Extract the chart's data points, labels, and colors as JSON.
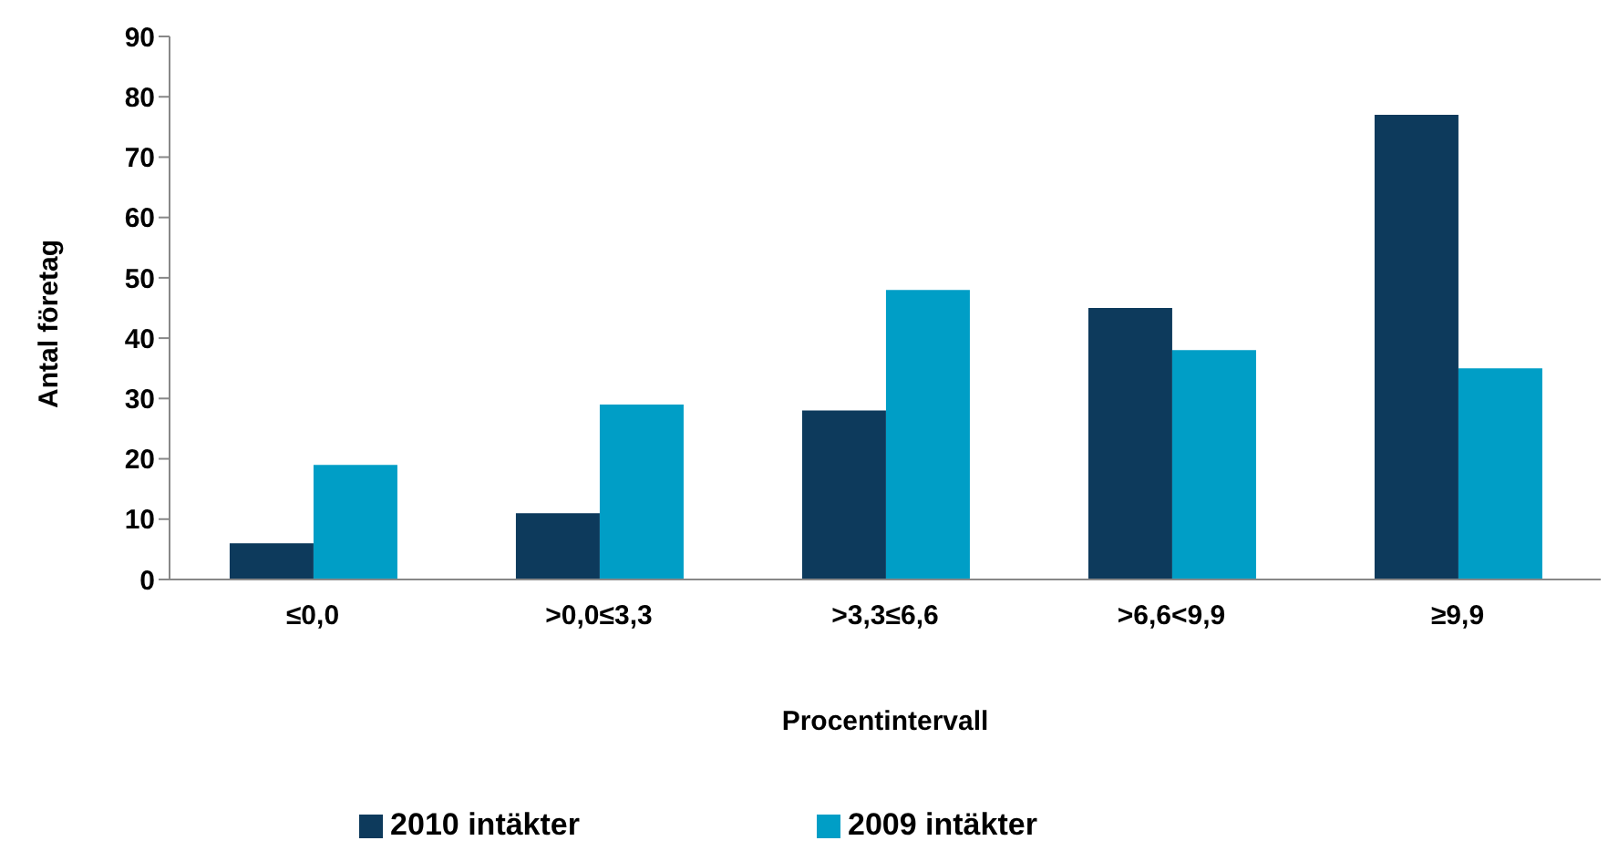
{
  "chart_data": {
    "type": "bar",
    "xlabel": "Procentintervall",
    "ylabel": "Antal företag",
    "categories": [
      "≤0,0",
      ">0,0≤3,3",
      ">3,3≤6,6",
      ">6,6<9,9",
      "≥9,9"
    ],
    "series": [
      {
        "name": "2010 intäkter",
        "color": "#0d3a5c",
        "values": [
          6,
          11,
          28,
          45,
          77
        ]
      },
      {
        "name": "2009 intäkter",
        "color": "#009ec6",
        "values": [
          19,
          29,
          48,
          38,
          35
        ]
      }
    ],
    "ylim": [
      0,
      90
    ],
    "yticks": [
      0,
      10,
      20,
      30,
      40,
      50,
      60,
      70,
      80,
      90
    ],
    "grid": false,
    "legend": "bottom"
  }
}
